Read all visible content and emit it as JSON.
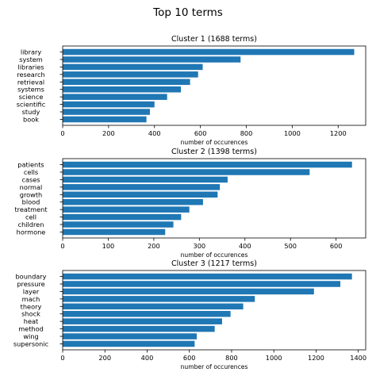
{
  "figure_title": "Top 10 terms",
  "chart_data": [
    {
      "type": "bar",
      "orientation": "horizontal",
      "title": "Cluster 1 (1688 terms)",
      "xlabel": "number of occurences",
      "ylabel": "",
      "categories": [
        "library",
        "system",
        "libraries",
        "research",
        "retrieval",
        "systems",
        "science",
        "scientific",
        "study",
        "book"
      ],
      "values": [
        1270,
        775,
        610,
        590,
        555,
        515,
        455,
        400,
        380,
        365
      ],
      "xlim": [
        0,
        1320
      ],
      "xticks": [
        0,
        200,
        400,
        600,
        800,
        1000,
        1200
      ]
    },
    {
      "type": "bar",
      "orientation": "horizontal",
      "title": "Cluster 2 (1398 terms)",
      "xlabel": "number of occurences",
      "ylabel": "",
      "categories": [
        "patients",
        "cells",
        "cases",
        "normal",
        "growth",
        "blood",
        "treatment",
        "cell",
        "children",
        "hormone"
      ],
      "values": [
        635,
        542,
        362,
        345,
        340,
        308,
        278,
        260,
        243,
        225
      ],
      "xlim": [
        0,
        665
      ],
      "xticks": [
        0,
        100,
        200,
        300,
        400,
        500,
        600
      ]
    },
    {
      "type": "bar",
      "orientation": "horizontal",
      "title": "Cluster 3 (1217 terms)",
      "xlabel": "number of occurences",
      "ylabel": "",
      "categories": [
        "boundary",
        "pressure",
        "layer",
        "mach",
        "theory",
        "shock",
        "heat",
        "method",
        "wing",
        "supersonic"
      ],
      "values": [
        1370,
        1315,
        1190,
        910,
        855,
        795,
        755,
        720,
        635,
        625
      ],
      "xlim": [
        0,
        1435
      ],
      "xticks": [
        0,
        200,
        400,
        600,
        800,
        1000,
        1200,
        1400
      ]
    }
  ]
}
